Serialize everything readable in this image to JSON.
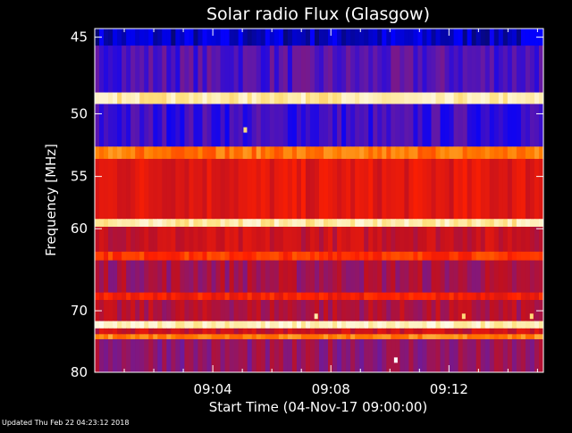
{
  "chart_data": {
    "type": "heatmap",
    "title": "Solar radio Flux (Glasgow)",
    "xlabel": "Start Time (04-Nov-17 09:00:00)",
    "ylabel": "Frequency [MHz]",
    "x_unit": "minutes after 09:00:00",
    "xlim": [
      0,
      15.2
    ],
    "ylim": [
      44.5,
      80
    ],
    "y_scale": "reciprocal",
    "x_ticks": [
      {
        "value": 4,
        "label": "09:04"
      },
      {
        "value": 8,
        "label": "09:08"
      },
      {
        "value": 12,
        "label": "09:12"
      }
    ],
    "y_ticks": [
      {
        "value": 45,
        "label": "45"
      },
      {
        "value": 50,
        "label": "50"
      },
      {
        "value": 55,
        "label": "55"
      },
      {
        "value": 60,
        "label": "60"
      },
      {
        "value": 70,
        "label": "70"
      },
      {
        "value": 80,
        "label": "80"
      }
    ],
    "colormap": [
      "#0a0a3a",
      "#0000ff",
      "#6a1aa0",
      "#c01020",
      "#ff2000",
      "#ff8000",
      "#ffe080",
      "#ffffff"
    ],
    "bands": [
      {
        "from_mhz": 44.5,
        "to_mhz": 45.5,
        "intensity": 0.1
      },
      {
        "from_mhz": 45.5,
        "to_mhz": 48.5,
        "intensity": 0.25
      },
      {
        "from_mhz": 48.5,
        "to_mhz": 49.3,
        "intensity": 0.9
      },
      {
        "from_mhz": 49.3,
        "to_mhz": 52.5,
        "intensity": 0.22
      },
      {
        "from_mhz": 52.5,
        "to_mhz": 53.5,
        "intensity": 0.7
      },
      {
        "from_mhz": 53.5,
        "to_mhz": 59.0,
        "intensity": 0.5
      },
      {
        "from_mhz": 59.0,
        "to_mhz": 59.8,
        "intensity": 0.9
      },
      {
        "from_mhz": 59.8,
        "to_mhz": 62.5,
        "intensity": 0.45
      },
      {
        "from_mhz": 62.5,
        "to_mhz": 63.5,
        "intensity": 0.6
      },
      {
        "from_mhz": 63.5,
        "to_mhz": 67.5,
        "intensity": 0.38
      },
      {
        "from_mhz": 67.5,
        "to_mhz": 68.5,
        "intensity": 0.55
      },
      {
        "from_mhz": 68.5,
        "to_mhz": 71.5,
        "intensity": 0.4
      },
      {
        "from_mhz": 71.5,
        "to_mhz": 72.6,
        "intensity": 0.92
      },
      {
        "from_mhz": 72.6,
        "to_mhz": 73.5,
        "intensity": 0.45
      },
      {
        "from_mhz": 73.5,
        "to_mhz": 74.3,
        "intensity": 0.72
      },
      {
        "from_mhz": 74.3,
        "to_mhz": 80.0,
        "intensity": 0.35
      }
    ],
    "bursts": [
      {
        "minute": 5.1,
        "mhz": 51.2,
        "intensity": 0.6
      },
      {
        "minute": 7.5,
        "mhz": 70.8,
        "intensity": 0.65
      },
      {
        "minute": 10.2,
        "mhz": 77.8,
        "intensity": 0.75
      },
      {
        "minute": 12.5,
        "mhz": 70.8,
        "intensity": 0.6
      },
      {
        "minute": 14.8,
        "mhz": 70.8,
        "intensity": 0.6
      }
    ]
  },
  "footer": {
    "updated": "Updated Thu Feb 22 04:23:12 2018"
  }
}
